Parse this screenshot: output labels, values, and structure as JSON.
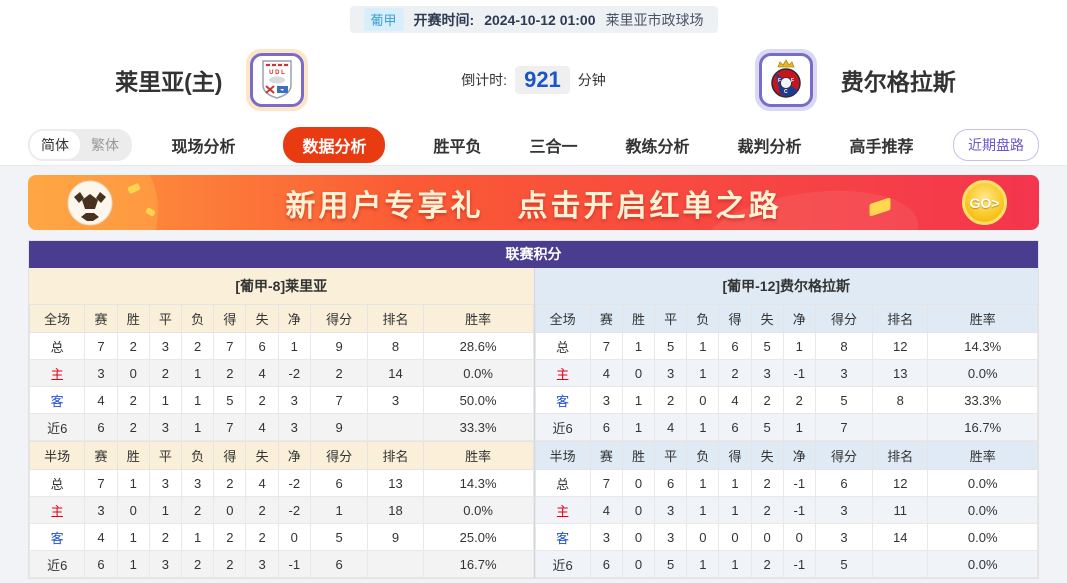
{
  "match_header": {
    "league": "葡甲",
    "kickoff_label": "开赛时间:",
    "kickoff_time": "2024-10-12 01:00",
    "venue": "莱里亚市政球场",
    "home_name": "莱里亚(主)",
    "away_name": "费尔格拉斯",
    "countdown_label": "倒计时:",
    "countdown_value": "921",
    "countdown_unit": "分钟"
  },
  "nav": {
    "lang_options": [
      {
        "label": "简体",
        "active": true
      },
      {
        "label": "繁体",
        "active": false
      }
    ],
    "tabs": [
      {
        "label": "现场分析",
        "active": false
      },
      {
        "label": "数据分析",
        "active": true
      },
      {
        "label": "胜平负",
        "active": false
      },
      {
        "label": "三合一",
        "active": false
      },
      {
        "label": "教练分析",
        "active": false
      },
      {
        "label": "裁判分析",
        "active": false
      },
      {
        "label": "高手推荐",
        "active": false
      }
    ],
    "recent_button": "近期盘路"
  },
  "banner": {
    "title": "新用户专享礼",
    "subtitle": "点击开启红单之路",
    "go_label": "GO>"
  },
  "standings": {
    "title": "联赛积分",
    "columns_full": [
      "全场",
      "赛",
      "胜",
      "平",
      "负",
      "得",
      "失",
      "净",
      "得分",
      "排名",
      "胜率"
    ],
    "columns_half": [
      "半场",
      "赛",
      "胜",
      "平",
      "负",
      "得",
      "失",
      "净",
      "得分",
      "排名",
      "胜率"
    ],
    "home": {
      "header": "[葡甲-8]莱里亚",
      "full_rows": [
        [
          "总",
          "7",
          "2",
          "3",
          "2",
          "7",
          "6",
          "1",
          "9",
          "8",
          "28.6%"
        ],
        [
          "主",
          "3",
          "0",
          "2",
          "1",
          "2",
          "4",
          "-2",
          "2",
          "14",
          "0.0%"
        ],
        [
          "客",
          "4",
          "2",
          "1",
          "1",
          "5",
          "2",
          "3",
          "7",
          "3",
          "50.0%"
        ],
        [
          "近6",
          "6",
          "2",
          "3",
          "1",
          "7",
          "4",
          "3",
          "9",
          "",
          "33.3%"
        ]
      ],
      "half_rows": [
        [
          "总",
          "7",
          "1",
          "3",
          "3",
          "2",
          "4",
          "-2",
          "6",
          "13",
          "14.3%"
        ],
        [
          "主",
          "3",
          "0",
          "1",
          "2",
          "0",
          "2",
          "-2",
          "1",
          "18",
          "0.0%"
        ],
        [
          "客",
          "4",
          "1",
          "2",
          "1",
          "2",
          "2",
          "0",
          "5",
          "9",
          "25.0%"
        ],
        [
          "近6",
          "6",
          "1",
          "3",
          "2",
          "2",
          "3",
          "-1",
          "6",
          "",
          "16.7%"
        ]
      ]
    },
    "away": {
      "header": "[葡甲-12]费尔格拉斯",
      "full_rows": [
        [
          "总",
          "7",
          "1",
          "5",
          "1",
          "6",
          "5",
          "1",
          "8",
          "12",
          "14.3%"
        ],
        [
          "主",
          "4",
          "0",
          "3",
          "1",
          "2",
          "3",
          "-1",
          "3",
          "13",
          "0.0%"
        ],
        [
          "客",
          "3",
          "1",
          "2",
          "0",
          "4",
          "2",
          "2",
          "5",
          "8",
          "33.3%"
        ],
        [
          "近6",
          "6",
          "1",
          "4",
          "1",
          "6",
          "5",
          "1",
          "7",
          "",
          "16.7%"
        ]
      ],
      "half_rows": [
        [
          "总",
          "7",
          "0",
          "6",
          "1",
          "1",
          "2",
          "-1",
          "6",
          "12",
          "0.0%"
        ],
        [
          "主",
          "4",
          "0",
          "3",
          "1",
          "1",
          "2",
          "-1",
          "3",
          "11",
          "0.0%"
        ],
        [
          "客",
          "3",
          "0",
          "3",
          "0",
          "0",
          "0",
          "0",
          "3",
          "14",
          "0.0%"
        ],
        [
          "近6",
          "6",
          "0",
          "5",
          "1",
          "1",
          "2",
          "-1",
          "5",
          "",
          "0.0%"
        ]
      ]
    }
  },
  "colors": {
    "accent_tab": "#e93b11",
    "standings_title_bar": "#4a3d8f",
    "home_theme": "#faf0da",
    "away_theme": "#dfeaf5",
    "home_label_red": "#e60012",
    "away_label_blue": "#1e4fd8",
    "countdown_blue": "#1a56c8"
  }
}
